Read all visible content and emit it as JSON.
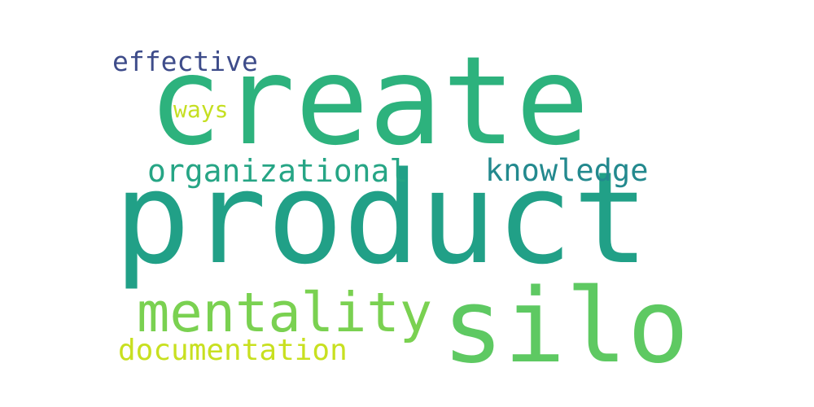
{
  "words": {
    "create": {
      "text": "create",
      "color": "#2db27d"
    },
    "product": {
      "text": "product",
      "color": "#21a087"
    },
    "silo": {
      "text": "silo",
      "color": "#5ec962"
    },
    "mentality": {
      "text": "mentality",
      "color": "#7ad151"
    },
    "organizational": {
      "text": "organizational",
      "color": "#26a585"
    },
    "knowledge": {
      "text": "knowledge",
      "color": "#23898e"
    },
    "documentation": {
      "text": "documentation",
      "color": "#c8e020"
    },
    "effective": {
      "text": "effective",
      "color": "#3e4c8a"
    },
    "ways": {
      "text": "ways",
      "color": "#c5df21"
    }
  }
}
